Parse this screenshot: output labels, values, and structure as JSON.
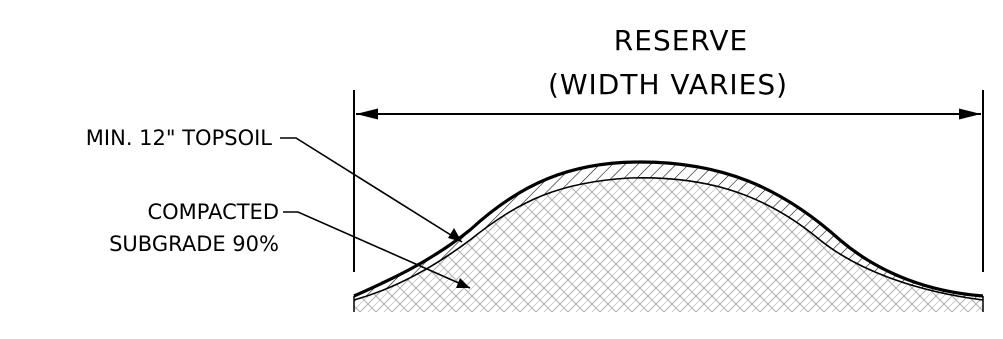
{
  "title": {
    "line1": "RESERVE",
    "line2": "(WIDTH VARIES)"
  },
  "callouts": {
    "topsoil": "MIN. 12\" TOPSOIL",
    "subgrade_line1": "COMPACTED",
    "subgrade_line2": "SUBGRADE 90%"
  },
  "colors": {
    "ink": "#000000",
    "hatch": "#9a9a9a",
    "background": "#ffffff"
  }
}
